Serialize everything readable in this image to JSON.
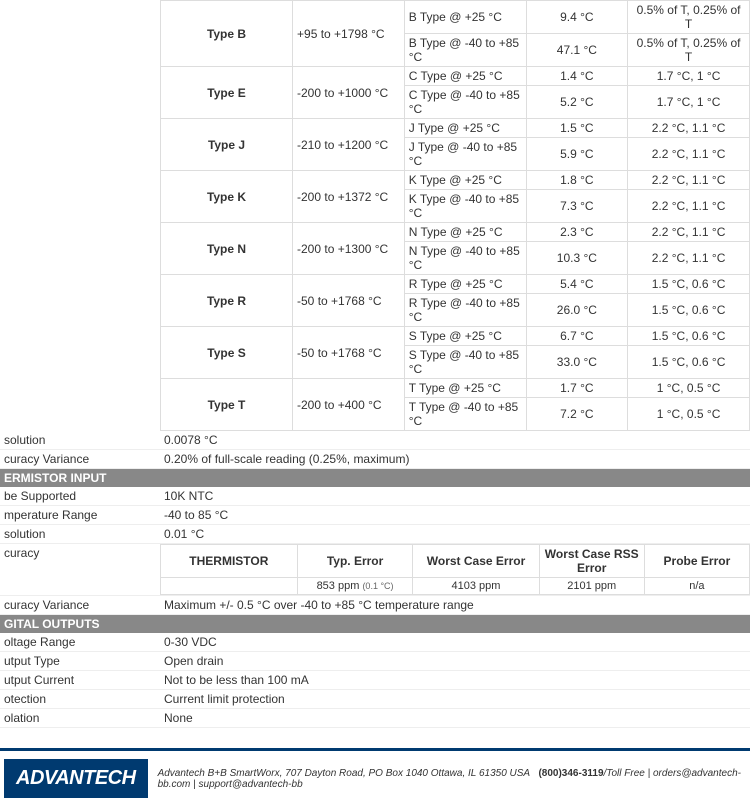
{
  "thermocouple_types": [
    {
      "type": "Type B",
      "range": "+95 to +1798 °C",
      "rows": [
        {
          "cond": "B Type @ +25 °C",
          "val": "9.4 °C",
          "spec": "0.5% of T, 0.25% of T"
        },
        {
          "cond": "B Type @ -40 to +85 °C",
          "val": "47.1 °C",
          "spec": "0.5% of T, 0.25% of T"
        }
      ]
    },
    {
      "type": "Type E",
      "range": "-200 to +1000 °C",
      "rows": [
        {
          "cond": "C Type @ +25 °C",
          "val": "1.4 °C",
          "spec": "1.7 °C, 1 °C"
        },
        {
          "cond": "C Type @ -40 to +85 °C",
          "val": "5.2 °C",
          "spec": "1.7 °C, 1 °C"
        }
      ]
    },
    {
      "type": "Type J",
      "range": "-210 to +1200 °C",
      "rows": [
        {
          "cond": "J Type @ +25 °C",
          "val": "1.5 °C",
          "spec": "2.2 °C, 1.1 °C"
        },
        {
          "cond": "J Type @ -40 to +85 °C",
          "val": "5.9 °C",
          "spec": "2.2 °C, 1.1 °C"
        }
      ]
    },
    {
      "type": "Type K",
      "range": "-200 to +1372 °C",
      "rows": [
        {
          "cond": "K Type @ +25 °C",
          "val": "1.8 °C",
          "spec": "2.2 °C, 1.1 °C"
        },
        {
          "cond": "K Type @ -40 to +85 °C",
          "val": "7.3 °C",
          "spec": "2.2 °C, 1.1 °C"
        }
      ]
    },
    {
      "type": "Type N",
      "range": "-200 to +1300 °C",
      "rows": [
        {
          "cond": "N Type @ +25 °C",
          "val": "2.3 °C",
          "spec": "2.2 °C, 1.1 °C"
        },
        {
          "cond": "N Type @ -40 to +85 °C",
          "val": "10.3 °C",
          "spec": "2.2 °C, 1.1 °C"
        }
      ]
    },
    {
      "type": "Type R",
      "range": "-50 to +1768 °C",
      "rows": [
        {
          "cond": "R Type @ +25 °C",
          "val": "5.4 °C",
          "spec": "1.5 °C, 0.6 °C"
        },
        {
          "cond": "R Type @ -40 to +85 °C",
          "val": "26.0 °C",
          "spec": "1.5 °C, 0.6 °C"
        }
      ]
    },
    {
      "type": "Type S",
      "range": "-50 to +1768 °C",
      "rows": [
        {
          "cond": "S Type @ +25 °C",
          "val": "6.7 °C",
          "spec": "1.5 °C, 0.6 °C"
        },
        {
          "cond": "S Type @ -40 to +85 °C",
          "val": "33.0 °C",
          "spec": "1.5 °C, 0.6 °C"
        }
      ]
    },
    {
      "type": "Type T",
      "range": "-200 to +400 °C",
      "rows": [
        {
          "cond": "T Type @ +25 °C",
          "val": "1.7 °C",
          "spec": "1 °C, 0.5 °C"
        },
        {
          "cond": "T Type @ -40 to +85 °C",
          "val": "7.2 °C",
          "spec": "1 °C, 0.5 °C"
        }
      ]
    }
  ],
  "spec_rows_1": [
    {
      "label": "solution",
      "value": "0.0078 °C"
    },
    {
      "label": "curacy Variance",
      "value": "0.20% of full-scale reading (0.25%, maximum)"
    }
  ],
  "section_thermistor": "ERMISTOR INPUT",
  "spec_rows_2": [
    {
      "label": "be Supported",
      "value": "10K NTC"
    },
    {
      "label": "mperature Range",
      "value": "-40 to 85 °C"
    },
    {
      "label": "solution",
      "value": "0.01 °C"
    }
  ],
  "therm_accuracy_label": "curacy",
  "therm_header": {
    "c1": "THERMISTOR",
    "c2": "Typ. Error",
    "c3": "Worst Case Error",
    "c4": "Worst Case RSS Error",
    "c5": "Probe Error"
  },
  "therm_row": {
    "c1": "",
    "c2": "853 ppm",
    "c2note": "(0.1 °C)",
    "c3": "4103 ppm",
    "c4": "2101 ppm",
    "c5": "n/a"
  },
  "spec_rows_3": [
    {
      "label": "curacy Variance",
      "value": "Maximum +/- 0.5 °C over -40 to +85 °C temperature range"
    }
  ],
  "section_digital": "GITAL OUTPUTS",
  "spec_rows_4": [
    {
      "label": "oltage Range",
      "value": "0-30 VDC"
    },
    {
      "label": "utput Type",
      "value": "Open drain"
    },
    {
      "label": "utput Current",
      "value": "Not to be less than 100 mA"
    },
    {
      "label": "otection",
      "value": "Current limit protection"
    },
    {
      "label": "olation",
      "value": "None"
    }
  ],
  "footer": {
    "logo": "ADVANTECH",
    "addr": "Advantech B+B SmartWorx, 707 Dayton Road, PO Box 1040 Ottawa, IL 61350 USA",
    "phone": "(800)346-3119",
    "toll": "/Toll Free  |  ",
    "email1": "orders@advantech-bb.com",
    "sep": "  |  ",
    "email2": "support@advantech-bb"
  }
}
